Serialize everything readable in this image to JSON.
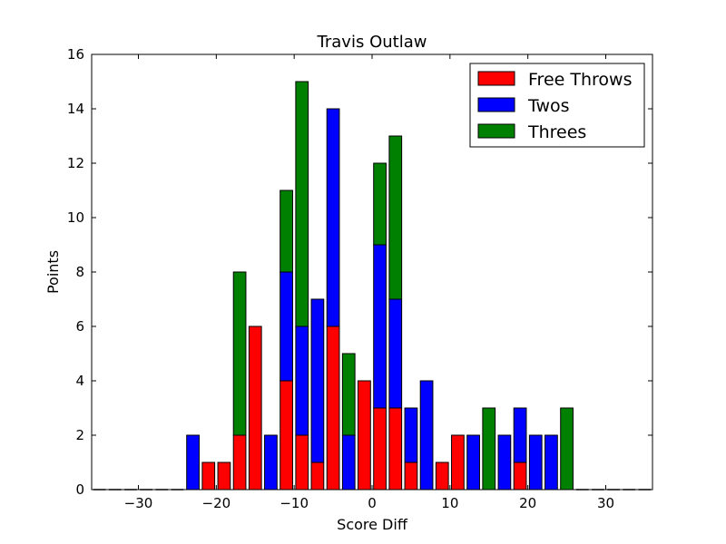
{
  "chart_data": {
    "type": "bar",
    "stacked": true,
    "title": "Travis Outlaw",
    "xlabel": "Score Diff",
    "ylabel": "Points",
    "xlim": [
      -36,
      36
    ],
    "ylim": [
      0,
      16
    ],
    "xticks": [
      -30,
      -20,
      -10,
      0,
      10,
      20,
      30
    ],
    "yticks": [
      0,
      2,
      4,
      6,
      8,
      10,
      12,
      14,
      16
    ],
    "bar_width": 1.6,
    "grid": false,
    "legend_position": "top-right",
    "x": [
      -35,
      -33,
      -31,
      -29,
      -27,
      -25,
      -23,
      -21,
      -19,
      -17,
      -15,
      -13,
      -11,
      -9,
      -7,
      -5,
      -3,
      -1,
      1,
      3,
      5,
      7,
      9,
      11,
      13,
      15,
      17,
      19,
      21,
      23,
      25,
      27,
      29,
      31,
      33,
      35
    ],
    "series": [
      {
        "name": "Free Throws",
        "color": "#ff0000",
        "values": [
          0,
          0,
          0,
          0,
          0,
          0,
          0,
          1,
          1,
          2,
          6,
          0,
          4,
          2,
          1,
          6,
          0,
          4,
          3,
          3,
          1,
          0,
          1,
          2,
          0,
          0,
          0,
          1,
          0,
          0,
          0,
          0,
          0,
          0,
          0,
          0
        ]
      },
      {
        "name": "Twos",
        "color": "#0000ff",
        "values": [
          0,
          0,
          0,
          0,
          0,
          0,
          2,
          0,
          0,
          0,
          0,
          2,
          4,
          4,
          6,
          8,
          2,
          0,
          6,
          4,
          2,
          4,
          0,
          0,
          2,
          0,
          2,
          2,
          2,
          2,
          0,
          0,
          0,
          0,
          0,
          0
        ]
      },
      {
        "name": "Threes",
        "color": "#008000",
        "values": [
          0,
          0,
          0,
          0,
          0,
          0,
          0,
          0,
          0,
          6,
          0,
          0,
          3,
          9,
          0,
          0,
          3,
          0,
          3,
          6,
          0,
          0,
          0,
          0,
          0,
          3,
          0,
          0,
          0,
          0,
          3,
          0,
          0,
          0,
          0,
          0
        ]
      }
    ]
  }
}
